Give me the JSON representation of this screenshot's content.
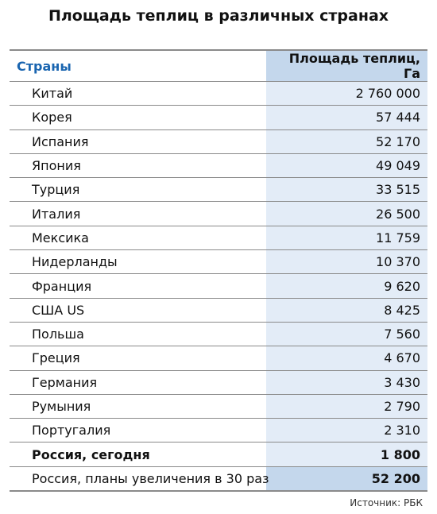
{
  "title": "Площадь теплиц в различных странах",
  "source": "Источник: РБК",
  "chart_data": {
    "type": "table",
    "title": "Площадь теплиц в различных странах",
    "columns": [
      "Страны",
      "Площадь теплиц, Га"
    ],
    "rows": [
      {
        "country": "Китай",
        "area": "2 760 000",
        "value": 2760000,
        "style": "normal"
      },
      {
        "country": "Корея",
        "area": "57 444",
        "value": 57444,
        "style": "normal"
      },
      {
        "country": "Испания",
        "area": "52 170",
        "value": 52170,
        "style": "normal"
      },
      {
        "country": "Япония",
        "area": "49 049",
        "value": 49049,
        "style": "normal"
      },
      {
        "country": "Турция",
        "area": "33 515",
        "value": 33515,
        "style": "normal"
      },
      {
        "country": "Италия",
        "area": "26 500",
        "value": 26500,
        "style": "normal"
      },
      {
        "country": "Мексика",
        "area": "11 759",
        "value": 11759,
        "style": "normal"
      },
      {
        "country": "Нидерланды",
        "area": "10 370",
        "value": 10370,
        "style": "normal"
      },
      {
        "country": "Франция",
        "area": "9 620",
        "value": 9620,
        "style": "normal"
      },
      {
        "country": "США US",
        "area": "8 425",
        "value": 8425,
        "style": "normal"
      },
      {
        "country": "Польша",
        "area": "7 560",
        "value": 7560,
        "style": "normal"
      },
      {
        "country": "Греция",
        "area": "4 670",
        "value": 4670,
        "style": "normal"
      },
      {
        "country": "Германия",
        "area": "3 430",
        "value": 3430,
        "style": "normal"
      },
      {
        "country": "Румыния",
        "area": "2 790",
        "value": 2790,
        "style": "normal"
      },
      {
        "country": "Португалия",
        "area": "2 310",
        "value": 2310,
        "style": "normal"
      },
      {
        "country": "Россия, сегодня",
        "area": "1 800",
        "value": 1800,
        "style": "bold"
      },
      {
        "country": "Россия, планы увеличения в 30 раз",
        "area": "52 200",
        "value": 52200,
        "style": "plan"
      }
    ],
    "colors": {
      "header_text": "#1a65b0",
      "header_value_bg": "#c4d7ec",
      "value_bg": "#e3ecf7",
      "border": "#8a8a8a"
    }
  }
}
